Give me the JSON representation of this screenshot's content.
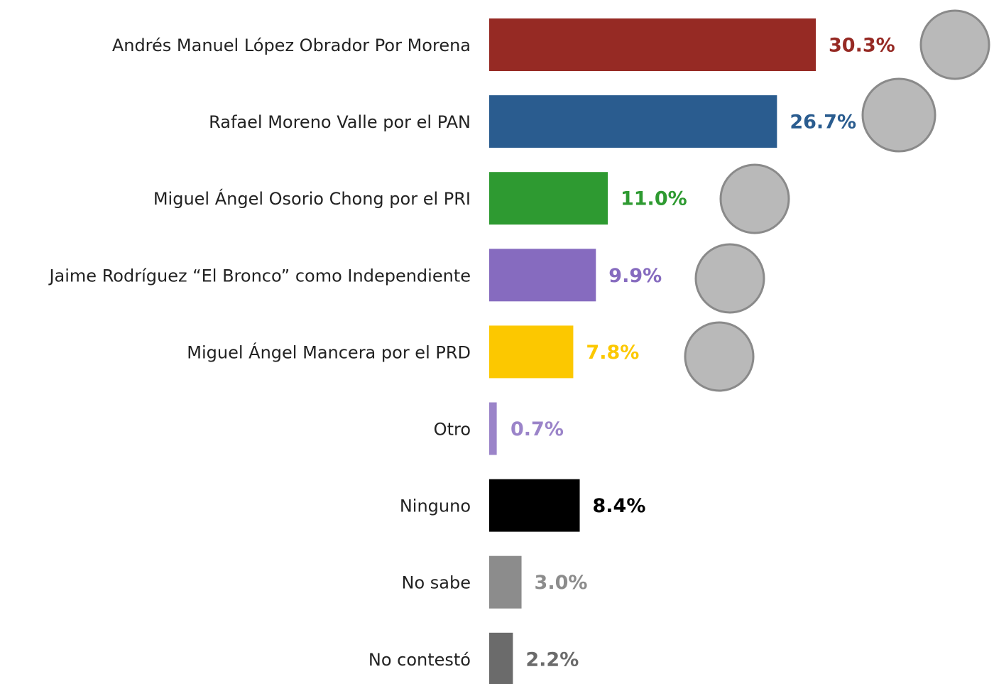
{
  "chart_data": {
    "type": "hbar",
    "categories": [
      "Andrés Manuel López Obrador Por Morena",
      "Rafael Moreno Valle por el PAN",
      "Miguel Ángel Osorio Chong por el PRI",
      "Jaime Rodríguez “El Bronco” como Independiente",
      "Miguel Ángel Mancera por el PRD",
      "Otro",
      "Ninguno",
      "No sabe",
      "No contestó"
    ],
    "values": [
      30.3,
      26.7,
      11.0,
      9.9,
      7.8,
      0.7,
      8.4,
      3.0,
      2.2
    ],
    "value_labels": [
      "30.3%",
      "26.7%",
      "11.0%",
      "9.9%",
      "7.8%",
      "0.7%",
      "8.4%",
      "3.0%",
      "2.2%"
    ],
    "colors": [
      "#962a24",
      "#2a5c8f",
      "#2e9a31",
      "#866bbf",
      "#fcc800",
      "#9b84c9",
      "#000000",
      "#8c8c8c",
      "#6b6b6b"
    ]
  }
}
